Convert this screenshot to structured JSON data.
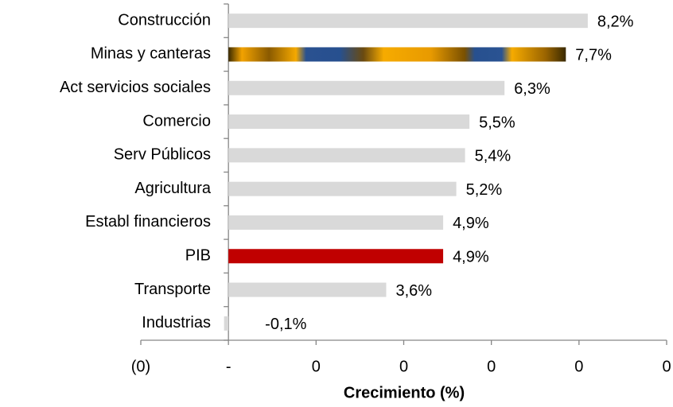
{
  "chart_data": {
    "type": "hbar",
    "x_label": "Crecimiento (%)",
    "categories": [
      "Construcción",
      "Minas y canteras",
      "Act servicios sociales",
      "Comercio",
      "Serv Públicos",
      "Agricultura",
      "Establ financieros",
      "PIB",
      "Transporte",
      "Industrias"
    ],
    "values": [
      8.2,
      7.7,
      6.3,
      5.5,
      5.4,
      5.2,
      4.9,
      4.9,
      3.6,
      -0.1
    ],
    "value_labels": [
      "8,2%",
      "7,7%",
      "6,3%",
      "5,5%",
      "5,4%",
      "5,2%",
      "4,9%",
      "4,9%",
      "3,6%",
      "-0,1%"
    ],
    "colors": [
      "#d9d9d9",
      "url(#mining-texture)",
      "#d9d9d9",
      "#d9d9d9",
      "#d9d9d9",
      "#d9d9d9",
      "#d9d9d9",
      "#c00000",
      "#d9d9d9",
      "#d9d9d9"
    ],
    "xlim": [
      -2,
      10
    ],
    "xticks": [
      {
        "value": -2,
        "label": "(0)"
      },
      {
        "value": 0,
        "label": "-"
      },
      {
        "value": 2,
        "label": "0"
      },
      {
        "value": 4,
        "label": "0"
      },
      {
        "value": 6,
        "label": "0"
      },
      {
        "value": 8,
        "label": "0"
      },
      {
        "value": 10,
        "label": "0"
      }
    ]
  }
}
